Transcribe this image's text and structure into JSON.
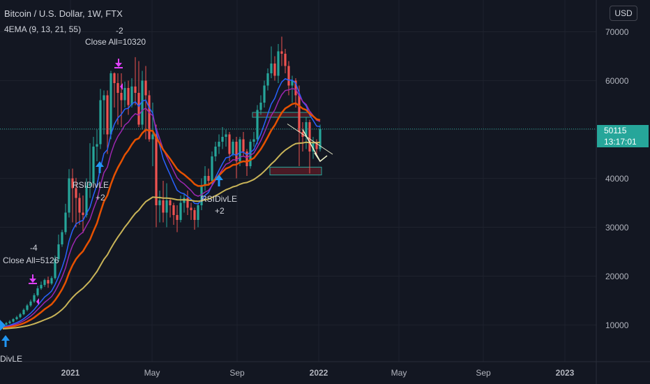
{
  "header": {
    "title": "Bitcoin / U.S. Dollar, 1W, FTX",
    "indicator": "4EMA (9, 13, 21, 55)",
    "currency_button": "USD"
  },
  "price_tag": {
    "price": "50115",
    "countdown": "13:17:01"
  },
  "annotations": {
    "close1_qty": "-2",
    "close1_label": "Close All=10320",
    "close2_qty": "-4",
    "close2_label": "Close All=5126",
    "rsi1_label": "RSIDivLE",
    "rsi1_qty": "+2",
    "rsi2_label": "RSIDivLE",
    "rsi2_qty": "+2",
    "rsi0_label": "DivLE"
  },
  "colors": {
    "background": "#131722",
    "up_candle": "#26a69a",
    "down_candle": "#ef5350",
    "ema9": "#2962ff",
    "ema13": "#9c27b0",
    "ema21": "#e65100",
    "ema55": "#c9b458",
    "price_tag": "#26a69a",
    "close_marker": "#e040fb",
    "entry_marker": "#2196f3"
  },
  "chart_data": {
    "type": "candlestick",
    "title": "Bitcoin / U.S. Dollar, 1W, FTX",
    "y_axis": {
      "ticks": [
        10000,
        20000,
        30000,
        40000,
        50000,
        60000,
        70000
      ],
      "range": [
        2500,
        76500
      ],
      "side": "right"
    },
    "x_axis": {
      "ticks": [
        "2021",
        "May",
        "Sep",
        "2022",
        "May",
        "Sep",
        "2023"
      ]
    },
    "current_price": 50115,
    "candles": [
      [
        9800,
        10100,
        9600,
        10300
      ],
      [
        10100,
        10400,
        9900,
        10600
      ],
      [
        10400,
        10700,
        10200,
        11000
      ],
      [
        10700,
        11200,
        10500,
        11400
      ],
      [
        11200,
        11600,
        11000,
        11900
      ],
      [
        11600,
        12200,
        11400,
        12500
      ],
      [
        12200,
        13100,
        12000,
        13400
      ],
      [
        13100,
        14000,
        12800,
        14300
      ],
      [
        14000,
        14800,
        13700,
        15200
      ],
      [
        14800,
        16100,
        14500,
        16500
      ],
      [
        16100,
        17500,
        15800,
        18000
      ],
      [
        17500,
        18200,
        17200,
        18900
      ],
      [
        18200,
        19200,
        17800,
        19500
      ],
      [
        19200,
        18500,
        17600,
        19900
      ],
      [
        18500,
        19600,
        18200,
        20000
      ],
      [
        19600,
        23500,
        19300,
        24200
      ],
      [
        23500,
        26500,
        23000,
        28500
      ],
      [
        26500,
        29000,
        26000,
        29500
      ],
      [
        29000,
        33000,
        28500,
        34800
      ],
      [
        33000,
        40000,
        32000,
        41900
      ],
      [
        40000,
        38000,
        31000,
        42000
      ],
      [
        38000,
        36000,
        30000,
        40100
      ],
      [
        36000,
        33000,
        30500,
        37000
      ],
      [
        33000,
        32500,
        28800,
        36500
      ],
      [
        32500,
        38500,
        32000,
        40000
      ],
      [
        38500,
        39000,
        36000,
        47200
      ],
      [
        39000,
        46500,
        38500,
        48500
      ],
      [
        46500,
        47000,
        43500,
        50000
      ],
      [
        47000,
        56000,
        46000,
        58300
      ],
      [
        56000,
        57000,
        49000,
        58000
      ],
      [
        57000,
        49000,
        45000,
        58000
      ],
      [
        49000,
        61500,
        48000,
        62000
      ],
      [
        61500,
        59500,
        54500,
        61700
      ],
      [
        59500,
        57500,
        51000,
        61500
      ],
      [
        57500,
        56000,
        50500,
        61500
      ],
      [
        56000,
        58500,
        54500,
        59800
      ],
      [
        58500,
        55000,
        53000,
        60000
      ],
      [
        55000,
        58800,
        54500,
        60500
      ],
      [
        58800,
        57500,
        55000,
        64800
      ],
      [
        57500,
        51000,
        50500,
        64000
      ],
      [
        51000,
        60000,
        50000,
        62000
      ],
      [
        60000,
        57000,
        48000,
        63000
      ],
      [
        57000,
        48000,
        47500,
        58000
      ],
      [
        48000,
        49000,
        42500,
        55500
      ],
      [
        49000,
        34500,
        30000,
        51000
      ],
      [
        34500,
        35500,
        31000,
        37500
      ],
      [
        35500,
        33000,
        31000,
        39500
      ],
      [
        33000,
        35500,
        30000,
        39000
      ],
      [
        35500,
        34500,
        32000,
        36000
      ],
      [
        34500,
        32500,
        30500,
        35000
      ],
      [
        32500,
        31500,
        29000,
        34500
      ],
      [
        31500,
        35000,
        31000,
        36500
      ],
      [
        35000,
        36000,
        33000,
        37000
      ],
      [
        36000,
        34000,
        32500,
        37500
      ],
      [
        34000,
        33500,
        31500,
        35000
      ],
      [
        33500,
        31500,
        29500,
        34000
      ],
      [
        31500,
        34500,
        30000,
        35000
      ],
      [
        34500,
        38500,
        33500,
        40000
      ],
      [
        38500,
        40500,
        37500,
        42500
      ],
      [
        40500,
        39500,
        38500,
        42000
      ],
      [
        39500,
        44500,
        38500,
        45500
      ],
      [
        44500,
        46500,
        43500,
        47500
      ],
      [
        46500,
        47500,
        45000,
        49000
      ],
      [
        47500,
        48500,
        46000,
        50500
      ],
      [
        48500,
        49000,
        46500,
        50000
      ],
      [
        49000,
        45000,
        43500,
        49500
      ],
      [
        45000,
        47500,
        44500,
        48000
      ],
      [
        47500,
        43500,
        40000,
        48500
      ],
      [
        43500,
        48000,
        42500,
        48500
      ],
      [
        48000,
        45500,
        44500,
        49500
      ],
      [
        45500,
        42500,
        40500,
        46000
      ],
      [
        42500,
        47500,
        42000,
        48000
      ],
      [
        47500,
        48000,
        46500,
        49500
      ],
      [
        48000,
        54000,
        47000,
        55000
      ],
      [
        54000,
        55500,
        53000,
        57000
      ],
      [
        55500,
        59000,
        54500,
        60000
      ],
      [
        59000,
        61500,
        58000,
        62500
      ],
      [
        61500,
        63500,
        60500,
        67000
      ],
      [
        63500,
        61000,
        60000,
        65000
      ],
      [
        61000,
        66000,
        59500,
        67500
      ],
      [
        66000,
        65500,
        63000,
        69000
      ],
      [
        65500,
        63000,
        61500,
        66500
      ],
      [
        63000,
        59000,
        57000,
        64000
      ],
      [
        59000,
        60000,
        55500,
        61000
      ],
      [
        60000,
        57000,
        54500,
        60500
      ],
      [
        57000,
        49500,
        42500,
        59000
      ],
      [
        49500,
        48500,
        45500,
        51500
      ],
      [
        48500,
        51500,
        46000,
        52500
      ],
      [
        51500,
        45500,
        41000,
        52000
      ],
      [
        45500,
        47500,
        44000,
        48500
      ],
      [
        47500,
        46000,
        45000,
        48000
      ],
      [
        46000,
        50115,
        45500,
        51000
      ]
    ],
    "ema_series": [
      {
        "name": "EMA 9",
        "period": 9
      },
      {
        "name": "EMA 13",
        "period": 13
      },
      {
        "name": "EMA 21",
        "period": 21
      },
      {
        "name": "EMA 55",
        "period": 55
      }
    ],
    "zones": [
      {
        "from_candle": 72,
        "to_candle": 88,
        "low": 52500,
        "high": 53500
      },
      {
        "from_candle": 77,
        "to_candle": 91,
        "low": 40700,
        "high": 42300
      }
    ],
    "arrow": {
      "from_candle": 86,
      "from": 50000,
      "to_candle": 91,
      "to": 43500
    }
  }
}
